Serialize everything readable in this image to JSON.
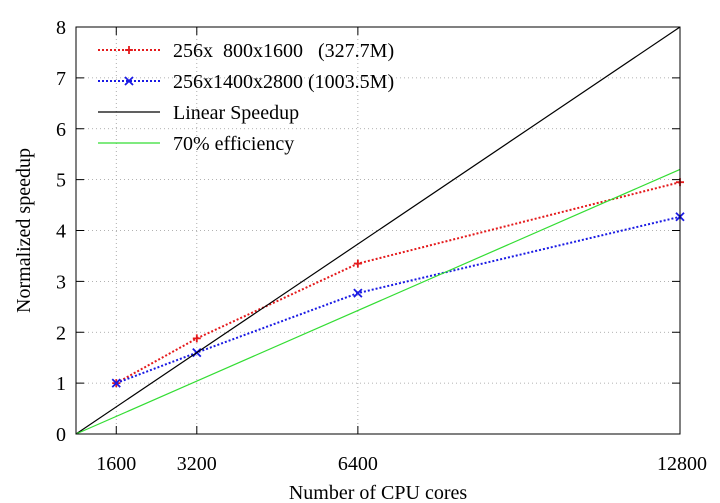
{
  "chart_data": {
    "type": "line",
    "title": "",
    "xlabel": "Number of CPU cores",
    "ylabel": "Normalized speedup",
    "xlim": [
      800,
      12800
    ],
    "ylim": [
      0,
      8
    ],
    "x_ticks": [
      1600,
      3200,
      6400,
      12800
    ],
    "y_ticks": [
      0,
      1,
      2,
      3,
      4,
      5,
      6,
      7,
      8
    ],
    "grid": true,
    "legend_position": "top-left",
    "series": [
      {
        "name": "256x  800x1600   (327.7M)",
        "color": "#e41a1c",
        "style": "dotted",
        "marker": "plus",
        "x": [
          1600,
          3200,
          6400,
          12800
        ],
        "y": [
          1.0,
          1.88,
          3.35,
          4.95
        ]
      },
      {
        "name": "256x1400x2800 (1003.5M)",
        "color": "#1a1ae4",
        "style": "dotted",
        "marker": "cross",
        "x": [
          1600,
          3200,
          6400,
          12800
        ],
        "y": [
          1.0,
          1.6,
          2.77,
          4.27
        ]
      },
      {
        "name": "Linear Speedup",
        "color": "#000000",
        "style": "solid",
        "marker": "none",
        "x": [
          800,
          12800
        ],
        "y": [
          0,
          8
        ]
      },
      {
        "name": "70% efficiency",
        "color": "#33dd33",
        "style": "solid",
        "marker": "none",
        "x": [
          800,
          12800
        ],
        "y": [
          0,
          5.2
        ]
      }
    ]
  }
}
